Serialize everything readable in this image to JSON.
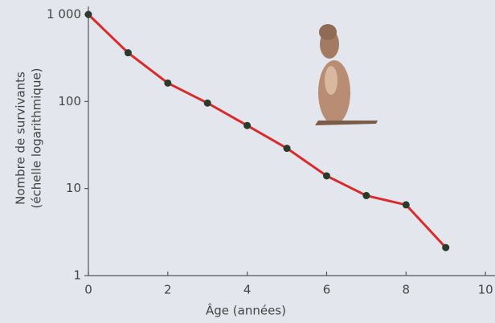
{
  "chart_data": {
    "type": "line",
    "log_y": true,
    "ylabel": [
      "Nombre de survivants",
      "(échelle logarithmique)"
    ],
    "xlabel": "Âge (années)",
    "x": [
      0,
      1,
      2,
      3,
      4,
      5,
      6,
      7,
      8,
      9
    ],
    "series": [
      {
        "color": "#d92b2b",
        "marker_color": "#2b3b2b",
        "values": [
          1000,
          363,
          163,
          96,
          53,
          29,
          14,
          8.3,
          6.5,
          2.1
        ]
      }
    ],
    "xlim": [
      0,
      10.2
    ],
    "xticks": [
      0,
      2,
      4,
      6,
      8,
      10
    ],
    "ylim": [
      1,
      1000
    ],
    "yticks": [
      1,
      10,
      100,
      {
        "value": 1000,
        "label": "1 000"
      }
    ]
  }
}
